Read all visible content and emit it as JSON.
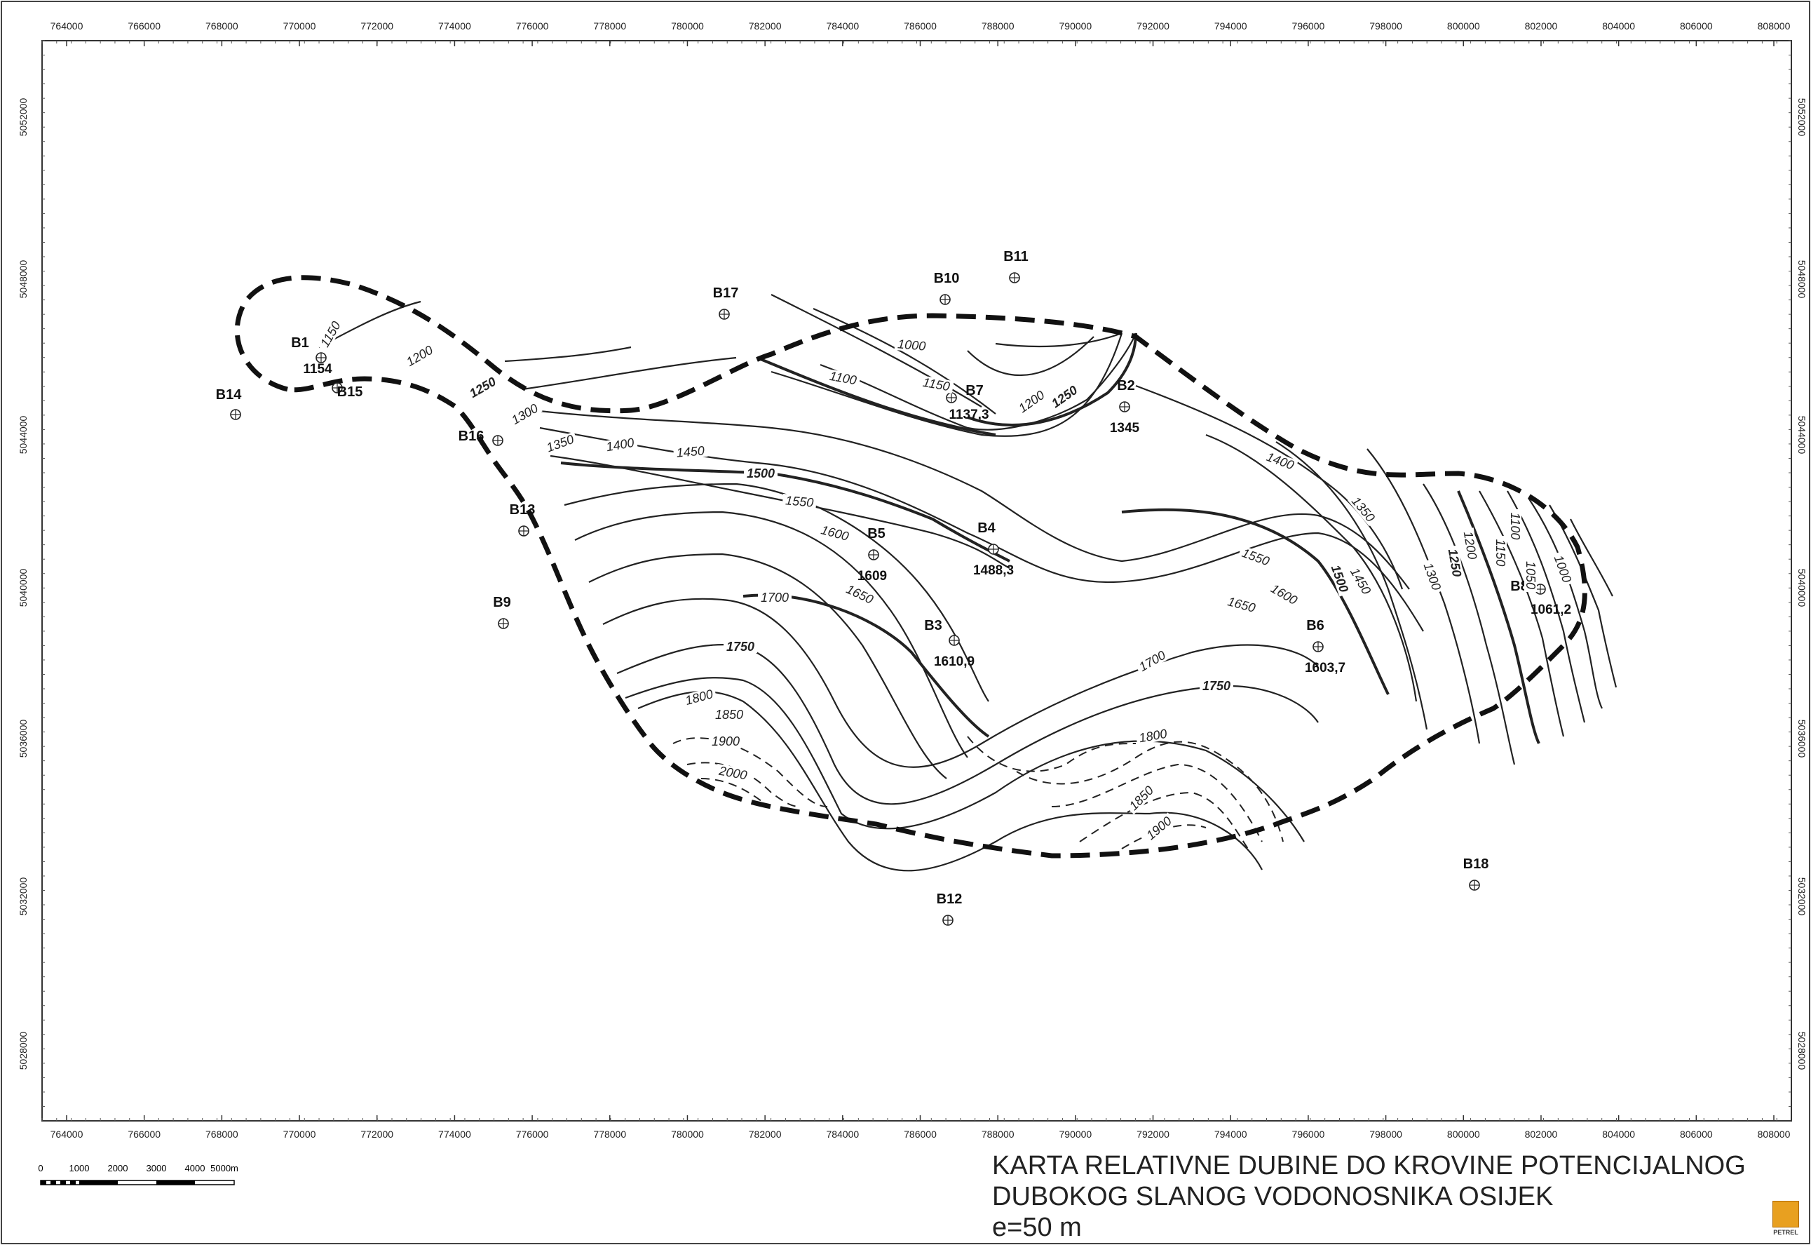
{
  "map": {
    "x_ticks": [
      "764000",
      "766000",
      "768000",
      "770000",
      "772000",
      "774000",
      "776000",
      "778000",
      "780000",
      "782000",
      "784000",
      "786000",
      "788000",
      "790000",
      "792000",
      "794000",
      "796000",
      "798000",
      "800000",
      "802000",
      "804000",
      "806000",
      "808000"
    ],
    "y_ticks": [
      "5052000",
      "5048000",
      "5044000",
      "5040000",
      "5036000",
      "5032000",
      "5028000"
    ],
    "wells": [
      {
        "name": "B1",
        "value": "1154"
      },
      {
        "name": "B15",
        "value": ""
      },
      {
        "name": "B14",
        "value": ""
      },
      {
        "name": "B16",
        "value": ""
      },
      {
        "name": "B13",
        "value": ""
      },
      {
        "name": "B9",
        "value": ""
      },
      {
        "name": "B17",
        "value": ""
      },
      {
        "name": "B10",
        "value": ""
      },
      {
        "name": "B11",
        "value": ""
      },
      {
        "name": "B7",
        "value": "1137,3"
      },
      {
        "name": "B2",
        "value": "1345"
      },
      {
        "name": "B5",
        "value": "1609"
      },
      {
        "name": "B4",
        "value": "1488,3"
      },
      {
        "name": "B3",
        "value": "1610,9"
      },
      {
        "name": "B6",
        "value": "1603,7"
      },
      {
        "name": "B8",
        "value": "1061,2"
      },
      {
        "name": "B12",
        "value": ""
      },
      {
        "name": "B18",
        "value": ""
      }
    ],
    "contour_labels": [
      "1150",
      "1200",
      "1250",
      "1300",
      "1350",
      "1400",
      "1450",
      "1500",
      "1550",
      "1600",
      "1650",
      "1700",
      "1750",
      "1800",
      "1850",
      "1900",
      "2000",
      "1000",
      "1100",
      "1150",
      "1200",
      "1250",
      "1400",
      "1350",
      "1550",
      "1500",
      "1450",
      "1600",
      "1650",
      "1700",
      "1750",
      "1800",
      "1850",
      "1900",
      "1300",
      "1250",
      "1200",
      "1150",
      "1100",
      "1050",
      "1000"
    ],
    "scale_bar": {
      "labels": [
        "0",
        "1000",
        "2000",
        "3000",
        "4000",
        "5000m"
      ]
    }
  },
  "title": {
    "line1": "KARTA RELATIVNE DUBINE DO KROVINE POTENCIJALNOG",
    "line2": "DUBOKOG SLANOG VODONOSNIKA OSIJEK",
    "line3": "e=50 m"
  },
  "logo": {
    "text": "PETREL"
  },
  "colors": {
    "line": "#222222",
    "frame": "#333333",
    "background": "#ffffff"
  }
}
